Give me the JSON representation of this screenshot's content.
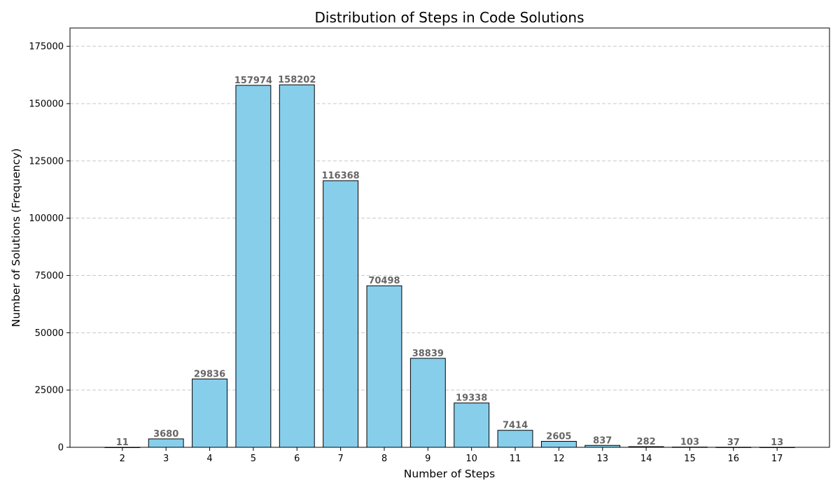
{
  "chart_data": {
    "type": "bar",
    "title": "Distribution of Steps in Code Solutions",
    "xlabel": "Number of Steps",
    "ylabel": "Number of Solutions (Frequency)",
    "categories": [
      "2",
      "3",
      "4",
      "5",
      "6",
      "7",
      "8",
      "9",
      "10",
      "11",
      "12",
      "13",
      "14",
      "15",
      "16",
      "17"
    ],
    "values": [
      11,
      3680,
      29836,
      157974,
      158202,
      116368,
      70498,
      38839,
      19338,
      7414,
      2605,
      837,
      282,
      103,
      37,
      13
    ],
    "ylim": [
      0,
      183000
    ],
    "yticks": [
      0,
      25000,
      50000,
      75000,
      100000,
      125000,
      150000,
      175000
    ],
    "grid": "y-dashed",
    "colors": {
      "bar_fill": "#87CEEB",
      "bar_edge": "#000000",
      "grid": "#c8c8c8",
      "data_label": "#666666"
    }
  }
}
